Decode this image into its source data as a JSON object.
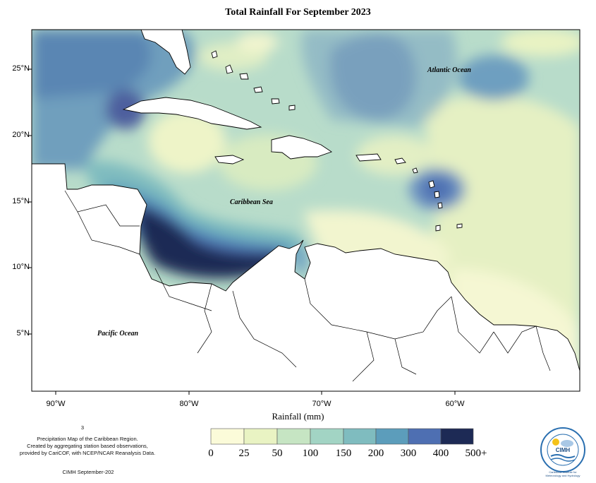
{
  "title": "Total Rainfall For September 2023",
  "y_ticks": [
    "25°N",
    "20°N",
    "15°N",
    "10°N",
    "5°N"
  ],
  "x_ticks": [
    "90°W",
    "80°W",
    "70°W",
    "60°W"
  ],
  "x_axis_title": "Rainfall (mm)",
  "labels": {
    "atlantic": "Atlantic Ocean",
    "caribbean": "Caribbean Sea",
    "pacific": "Pacific Ocean"
  },
  "legend": {
    "values": [
      "0",
      "25",
      "50",
      "100",
      "150",
      "200",
      "300",
      "400",
      "500+"
    ],
    "colors": [
      "#fbfbd9",
      "#e9f3c3",
      "#c6e5c3",
      "#a2d4c4",
      "#7fbcbf",
      "#5c9dbb",
      "#4e6fb2",
      "#3f3f8f",
      "#1d2a55"
    ]
  },
  "notes": {
    "page_num": "3",
    "description_l1": "Precipitation Map of the Caribbean Region.",
    "description_l2": "Created by aggregating station based observations,",
    "description_l3": "provided by CariCOF, with NCEP/NCAR Reanalysis Data.",
    "credit": "CIMH September-202"
  },
  "logo": {
    "abbr": "CIMH",
    "ring_text": "Caribbean Institute for Meteorology and Hydrology"
  }
}
